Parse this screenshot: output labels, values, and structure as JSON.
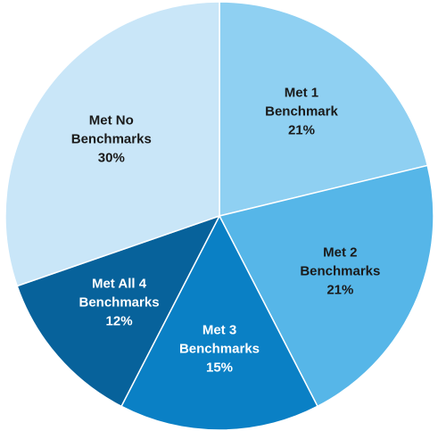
{
  "chart_data": {
    "type": "pie",
    "categories": [
      "Met 1 Benchmark",
      "Met 2 Benchmarks",
      "Met 3 Benchmarks",
      "Met All 4 Benchmarks",
      "Met No Benchmarks"
    ],
    "values": [
      21,
      21,
      15,
      12,
      30
    ],
    "value_labels": [
      "21%",
      "21%",
      "15%",
      "12%",
      "30%"
    ],
    "colors": [
      "#8fd0f2",
      "#56b6e8",
      "#0a80c5",
      "#07629b",
      "#c9e6f8"
    ]
  }
}
